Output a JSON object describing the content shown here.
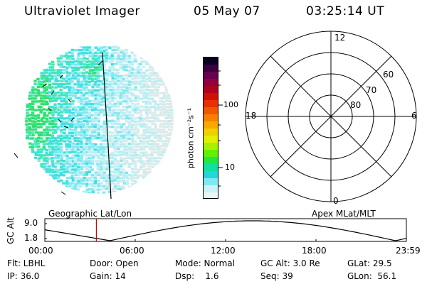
{
  "header": {
    "instrument": "Ultraviolet Imager",
    "date": "05 May 07",
    "time": "03:25:14 UT"
  },
  "colorbar": {
    "unit_label": "photon cm⁻²s⁻¹",
    "ticks": [
      "100",
      "10"
    ],
    "colors": [
      "#0a0020",
      "#3a0040",
      "#6a0050",
      "#90003a",
      "#b00020",
      "#d01000",
      "#e83000",
      "#f05800",
      "#f88000",
      "#f8a800",
      "#f0d000",
      "#e0f000",
      "#a8f000",
      "#60f000",
      "#20e840",
      "#10e0a0",
      "#20d8d8",
      "#80e8f0",
      "#c8f4f8",
      "#e8f8f8"
    ]
  },
  "polar": {
    "mlt_labels": [
      "12",
      "18",
      "6",
      "0"
    ],
    "lat_labels": [
      "60",
      "70",
      "80"
    ]
  },
  "timeline": {
    "left_label": "Geographic Lat/Lon",
    "right_label": "Apex MLat/MLT",
    "y_axis_label": "GC Alt",
    "y_ticks": [
      "9.0",
      "1.8"
    ],
    "x_ticks": [
      "00:00",
      "06:00",
      "12:00",
      "18:00",
      "23:59"
    ],
    "marker_color": "#cc0000"
  },
  "info": {
    "row1": [
      "Flt: LBHL",
      "Door: Open",
      "Mode: Normal",
      "GC Alt: 3.0 Re",
      "GLat: 29.5"
    ],
    "row2": [
      "IP: 36.0",
      "Gain: 14",
      "Dsp:    1.6",
      "Seq: 39",
      "GLon:  56.1"
    ]
  }
}
